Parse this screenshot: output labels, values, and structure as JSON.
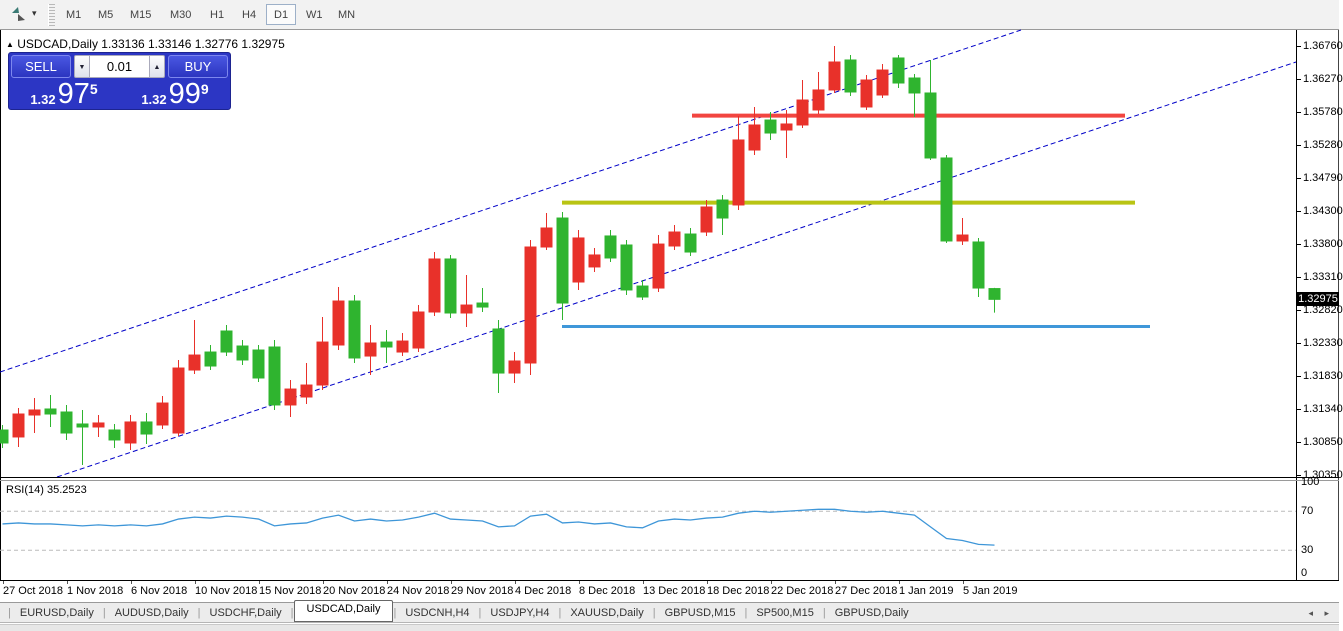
{
  "icons": {
    "caret": "▾",
    "collapse": "▲",
    "stepper_up": "▲",
    "stepper_down": "▼",
    "scroll_left": "◂",
    "scroll_right": "▸"
  },
  "toolbar": {
    "timeframes": [
      "M1",
      "M5",
      "M15",
      "M30",
      "H1",
      "H4",
      "D1",
      "W1",
      "MN"
    ],
    "selected_timeframe": "D1"
  },
  "chart": {
    "symbol_title": "USDCAD,Daily",
    "ohlc": "1.33136 1.33146 1.32776 1.32975",
    "trade_panel": {
      "sell_label": "SELL",
      "buy_label": "BUY",
      "volume": "0.01",
      "sell_price": {
        "prefix": "1.32",
        "main": "97",
        "sup": "5"
      },
      "buy_price": {
        "prefix": "1.32",
        "main": "99",
        "sup": "9"
      }
    },
    "price_axis": {
      "labels": [
        "1.36760",
        "1.36270",
        "1.35780",
        "1.35280",
        "1.34790",
        "1.34300",
        "1.33800",
        "1.33310",
        "1.32820",
        "1.32330",
        "1.31830",
        "1.31340",
        "1.30850",
        "1.30350"
      ],
      "current": "1.32975"
    }
  },
  "rsi_panel": {
    "label": "RSI(14) 35.2523",
    "axis_labels": [
      "100",
      "70",
      "30",
      "0"
    ],
    "axis_values": [
      100,
      70,
      30,
      0
    ]
  },
  "tabs": {
    "items": [
      {
        "label": "EURUSD,Daily",
        "active": false
      },
      {
        "label": "AUDUSD,Daily",
        "active": false
      },
      {
        "label": "USDCHF,Daily",
        "active": false
      },
      {
        "label": "USDCAD,Daily",
        "active": true
      },
      {
        "label": "USDCNH,H4",
        "active": false
      },
      {
        "label": "USDJPY,H4",
        "active": false
      },
      {
        "label": "XAUUSD,Daily",
        "active": false
      },
      {
        "label": "GBPUSD,M15",
        "active": false
      },
      {
        "label": "SP500,M15",
        "active": false
      },
      {
        "label": "GBPUSD,Daily",
        "active": false
      }
    ]
  },
  "chart_data": {
    "type": "candlestick",
    "symbol": "USDCAD",
    "timeframe": "Daily",
    "title": "USDCAD,Daily",
    "ohlc_current": {
      "open": 1.33136,
      "high": 1.33146,
      "low": 1.32776,
      "close": 1.32975
    },
    "bid": 1.32975,
    "ask": 1.32999,
    "ylim": [
      1.3035,
      1.3676
    ],
    "grid": false,
    "x_axis_dates": [
      "27 Oct 2018",
      "1 Nov 2018",
      "6 Nov 2018",
      "10 Nov 2018",
      "15 Nov 2018",
      "20 Nov 2018",
      "24 Nov 2018",
      "29 Nov 2018",
      "4 Dec 2018",
      "8 Dec 2018",
      "13 Dec 2018",
      "18 Dec 2018",
      "22 Dec 2018",
      "27 Dec 2018",
      "1 Jan 2019",
      "5 Jan 2019"
    ],
    "colors": {
      "bull": "#e8312a",
      "bear": "#2fb42f",
      "channel": "#0000c8",
      "red_line": "#f24540",
      "yellow_line": "#b9c414",
      "blue_line": "#3f97d9",
      "rsi": "#3e96d8",
      "rsi_level": "#bbbbbb"
    },
    "candles": [
      [
        1.31023,
        1.31098,
        1.30754,
        1.30829
      ],
      [
        1.30919,
        1.31352,
        1.30769,
        1.31262
      ],
      [
        1.31247,
        1.31501,
        1.30978,
        1.31322
      ],
      [
        1.31337,
        1.31546,
        1.31068,
        1.31262
      ],
      [
        1.31292,
        1.31397,
        1.30874,
        1.30978
      ],
      [
        1.31113,
        1.31322,
        1.305,
        1.31068
      ],
      [
        1.31068,
        1.31247,
        1.30919,
        1.31128
      ],
      [
        1.31023,
        1.31113,
        1.30754,
        1.30874
      ],
      [
        1.30829,
        1.31247,
        1.30724,
        1.31143
      ],
      [
        1.31143,
        1.31277,
        1.30814,
        1.30963
      ],
      [
        1.31098,
        1.31531,
        1.31038,
        1.31426
      ],
      [
        1.30978,
        1.32069,
        1.30933,
        1.31949
      ],
      [
        1.31919,
        1.32666,
        1.3186,
        1.32143
      ],
      [
        1.32188,
        1.32293,
        1.31919,
        1.31979
      ],
      [
        1.32502,
        1.32591,
        1.32128,
        1.32188
      ],
      [
        1.32278,
        1.32367,
        1.31994,
        1.32069
      ],
      [
        1.32218,
        1.32293,
        1.3174,
        1.318
      ],
      [
        1.32263,
        1.32367,
        1.31322,
        1.31397
      ],
      [
        1.31397,
        1.3177,
        1.31217,
        1.31635
      ],
      [
        1.31516,
        1.32024,
        1.31412,
        1.31695
      ],
      [
        1.31695,
        1.32711,
        1.3162,
        1.32337
      ],
      [
        1.32293,
        1.33159,
        1.32218,
        1.3295
      ],
      [
        1.3295,
        1.3304,
        1.32024,
        1.32099
      ],
      [
        1.32128,
        1.32591,
        1.31845,
        1.32323
      ],
      [
        1.32337,
        1.32517,
        1.32024,
        1.32263
      ],
      [
        1.32188,
        1.32472,
        1.32128,
        1.32352
      ],
      [
        1.32248,
        1.3289,
        1.32188,
        1.32786
      ],
      [
        1.32786,
        1.33682,
        1.32726,
        1.33578
      ],
      [
        1.33578,
        1.33638,
        1.32696,
        1.32771
      ],
      [
        1.32771,
        1.33339,
        1.32562,
        1.3289
      ],
      [
        1.3292,
        1.33144,
        1.32786,
        1.3286
      ],
      [
        1.32532,
        1.32666,
        1.31575,
        1.31874
      ],
      [
        1.31874,
        1.32188,
        1.31725,
        1.32054
      ],
      [
        1.32024,
        1.33861,
        1.31845,
        1.33757
      ],
      [
        1.33757,
        1.34265,
        1.33712,
        1.34041
      ],
      [
        1.3419,
        1.3428,
        1.32666,
        1.3292
      ],
      [
        1.33234,
        1.34011,
        1.33115,
        1.33892
      ],
      [
        1.33459,
        1.33742,
        1.33383,
        1.33638
      ],
      [
        1.33922,
        1.34011,
        1.33533,
        1.33593
      ],
      [
        1.33787,
        1.33861,
        1.3304,
        1.33115
      ],
      [
        1.33174,
        1.33264,
        1.32965,
        1.3301
      ],
      [
        1.33144,
        1.33936,
        1.33085,
        1.33801
      ],
      [
        1.33772,
        1.34086,
        1.33712,
        1.33981
      ],
      [
        1.33951,
        1.34041,
        1.33623,
        1.33682
      ],
      [
        1.33981,
        1.34459,
        1.33922,
        1.34355
      ],
      [
        1.34459,
        1.34534,
        1.33936,
        1.3419
      ],
      [
        1.34385,
        1.35714,
        1.3431,
        1.35356
      ],
      [
        1.35206,
        1.35849,
        1.35132,
        1.3558
      ],
      [
        1.35654,
        1.35774,
        1.35356,
        1.3546
      ],
      [
        1.35505,
        1.35804,
        1.35087,
        1.35595
      ],
      [
        1.3558,
        1.36252,
        1.35535,
        1.35953
      ],
      [
        1.35804,
        1.36372,
        1.35744,
        1.36103
      ],
      [
        1.36103,
        1.3676,
        1.36058,
        1.36521
      ],
      [
        1.36551,
        1.36626,
        1.36013,
        1.36073
      ],
      [
        1.35849,
        1.36327,
        1.35804,
        1.36252
      ],
      [
        1.36028,
        1.36491,
        1.35983,
        1.36401
      ],
      [
        1.36581,
        1.36626,
        1.36133,
        1.36207
      ],
      [
        1.36282,
        1.36342,
        1.35699,
        1.36058
      ],
      [
        1.36058,
        1.36551,
        1.35057,
        1.35087
      ],
      [
        1.35087,
        1.35132,
        1.33817,
        1.33847
      ],
      [
        1.33847,
        1.3419,
        1.33787,
        1.33936
      ],
      [
        1.33832,
        1.33892,
        1.3301,
        1.33144
      ],
      [
        1.33136,
        1.33146,
        1.32776,
        1.32975
      ]
    ],
    "annotations": {
      "hlines": [
        {
          "price": 1.3572,
          "color_key": "red_line",
          "width": 4,
          "x1": 692,
          "x2": 1125
        },
        {
          "price": 1.3442,
          "color_key": "yellow_line",
          "width": 4,
          "x1": 562,
          "x2": 1135
        },
        {
          "price": 1.3257,
          "color_key": "blue_line",
          "width": 3,
          "x1": 562,
          "x2": 1150
        }
      ],
      "channel": [
        {
          "x1": 0,
          "y1": 372,
          "x2": 1021,
          "y2": 30
        },
        {
          "x1": 57,
          "y1": 477,
          "x2": 1296,
          "y2": 62
        }
      ]
    },
    "rsi": {
      "name": "RSI",
      "period": 14,
      "value": 35.2523,
      "range": [
        0,
        100
      ],
      "levels": [
        70,
        30
      ],
      "series": [
        57,
        58,
        57,
        57,
        56,
        55,
        56,
        55,
        56,
        55,
        57,
        62,
        64,
        63,
        65,
        64,
        62,
        55,
        57,
        58,
        63,
        66,
        60,
        62,
        60,
        61,
        64,
        68,
        62,
        61,
        60,
        54,
        55,
        65,
        67,
        58,
        59,
        57,
        58,
        54,
        53,
        60,
        62,
        61,
        63,
        64,
        68,
        70,
        69,
        70,
        71,
        72,
        72,
        70,
        69,
        70,
        68,
        66,
        54,
        42,
        40,
        36,
        35.25
      ]
    }
  }
}
